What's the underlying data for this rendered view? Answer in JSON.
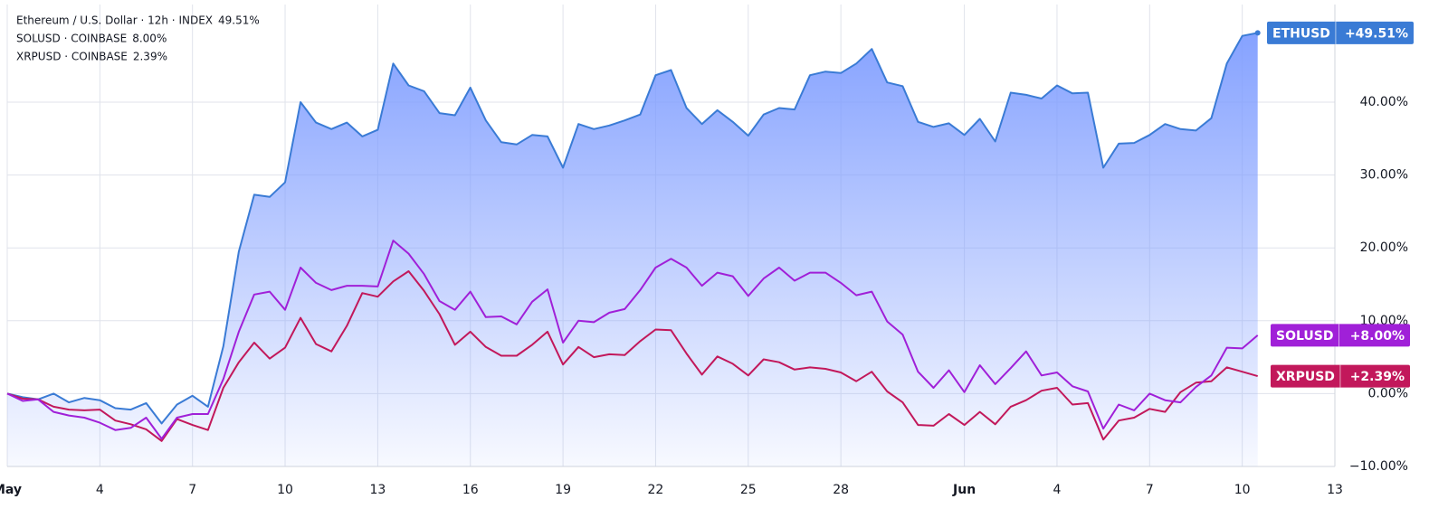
{
  "chart_data": {
    "type": "line",
    "x": [
      0,
      0.5,
      1,
      1.5,
      2,
      2.5,
      3,
      3.5,
      4,
      4.5,
      5,
      5.5,
      6,
      6.5,
      7,
      7.5,
      8,
      8.5,
      9,
      9.5,
      10,
      10.5,
      11,
      11.5,
      12,
      12.5,
      13,
      13.5,
      14,
      14.5,
      15,
      15.5,
      16,
      16.5,
      17,
      17.5,
      18,
      18.5,
      19,
      19.5,
      20,
      20.5,
      21,
      21.5,
      22,
      22.5,
      23,
      23.5,
      24,
      24.5,
      25,
      25.5,
      26,
      26.5,
      27,
      27.5,
      28,
      28.5,
      29,
      29.5,
      30,
      30.5,
      31,
      31.5,
      32,
      32.5,
      33,
      33.5,
      34,
      34.5,
      35,
      35.5,
      36,
      36.5,
      37,
      37.5,
      38,
      38.5,
      39,
      39.5,
      40,
      40.5
    ],
    "series": [
      {
        "name": "Ethereum / U.S. Dollar · 12h · INDEX",
        "symbol": "ETHUSD",
        "legend_value": "49.51%",
        "end_label": "+49.51%",
        "color": "#3a7bd5",
        "fill": true,
        "values": [
          0,
          -0.5,
          -0.8,
          0,
          -1.2,
          -0.6,
          -0.9,
          -2,
          -2.2,
          -1.3,
          -4.1,
          -1.5,
          -0.3,
          -1.8,
          6.5,
          19.5,
          27.3,
          27,
          29,
          40,
          37.2,
          36.3,
          37.2,
          35.3,
          36.2,
          45.3,
          42.3,
          41.5,
          38.5,
          38.2,
          42,
          37.5,
          34.5,
          34.2,
          35.5,
          35.3,
          31,
          37,
          36.3,
          36.8,
          37.5,
          38.3,
          43.7,
          44.4,
          39.2,
          37,
          38.9,
          37.3,
          35.4,
          38.3,
          39.2,
          39,
          43.7,
          44.2,
          44,
          45.3,
          47.3,
          42.7,
          42.2,
          37.3,
          36.6,
          37.1,
          35.5,
          37.7,
          34.6,
          41.3,
          41,
          40.5,
          42.3,
          41.2,
          41.3,
          31,
          34.3,
          34.4,
          35.5,
          37,
          36.3,
          36.1,
          37.8,
          45.3,
          49.1,
          49.51
        ]
      },
      {
        "name": "XRPUSD · COINBASE",
        "symbol": "XRPUSD",
        "legend_value": "2.39%",
        "end_label": "+2.39%",
        "color": "#c2185b",
        "fill": false,
        "values": [
          0,
          -0.7,
          -0.8,
          -1.8,
          -2.2,
          -2.3,
          -2.2,
          -3.7,
          -4.2,
          -4.9,
          -6.5,
          -3.5,
          -4.3,
          -5,
          0.8,
          4.3,
          7,
          4.8,
          6.3,
          10.4,
          6.8,
          5.8,
          9.3,
          13.8,
          13.3,
          15.4,
          16.8,
          14.1,
          10.9,
          6.7,
          8.5,
          6.4,
          5.2,
          5.2,
          6.7,
          8.5,
          4,
          6.4,
          5,
          5.4,
          5.3,
          7.2,
          8.8,
          8.7,
          5.5,
          2.6,
          5.1,
          4.1,
          2.5,
          4.7,
          4.3,
          3.3,
          3.6,
          3.4,
          2.9,
          1.7,
          3,
          0.3,
          -1.2,
          -4.3,
          -4.4,
          -2.8,
          -4.3,
          -2.5,
          -4.2,
          -1.8,
          -0.9,
          0.4,
          0.8,
          -1.5,
          -1.3,
          -6.3,
          -3.7,
          -3.3,
          -2.1,
          -2.5,
          0.2,
          1.5,
          1.7,
          3.6,
          3,
          2.39
        ]
      },
      {
        "name": "SOLUSD · COINBASE",
        "symbol": "SOLUSD",
        "legend_value": "8.00%",
        "end_label": "+8.00%",
        "color": "#a020d8",
        "fill": false,
        "values": [
          0,
          -1,
          -0.8,
          -2.5,
          -3,
          -3.3,
          -4,
          -5,
          -4.7,
          -3.3,
          -6.2,
          -3.3,
          -2.8,
          -2.8,
          2,
          8.5,
          13.6,
          14,
          11.5,
          17.3,
          15.2,
          14.2,
          14.8,
          14.8,
          14.7,
          21,
          19.2,
          16.4,
          12.7,
          11.5,
          14,
          10.5,
          10.6,
          9.5,
          12.6,
          14.3,
          7,
          10,
          9.8,
          11.1,
          11.6,
          14.2,
          17.3,
          18.5,
          17.3,
          14.8,
          16.6,
          16.1,
          13.4,
          15.8,
          17.3,
          15.5,
          16.6,
          16.6,
          15.2,
          13.5,
          14,
          9.9,
          8.1,
          3,
          0.8,
          3.2,
          0.2,
          3.9,
          1.3,
          3.5,
          5.8,
          2.5,
          2.9,
          1,
          0.3,
          -4.8,
          -1.5,
          -2.3,
          0,
          -0.9,
          -1.2,
          0.9,
          2.5,
          6.3,
          6.2,
          8
        ]
      }
    ],
    "xlim": [
      0,
      43
    ],
    "xticks": [
      {
        "value": 0,
        "label": "May"
      },
      {
        "value": 3,
        "label": "4"
      },
      {
        "value": 6,
        "label": "7"
      },
      {
        "value": 9,
        "label": "10"
      },
      {
        "value": 12,
        "label": "13"
      },
      {
        "value": 15,
        "label": "16"
      },
      {
        "value": 18,
        "label": "19"
      },
      {
        "value": 21,
        "label": "22"
      },
      {
        "value": 24,
        "label": "25"
      },
      {
        "value": 27,
        "label": "28"
      },
      {
        "value": 31,
        "label": "Jun"
      },
      {
        "value": 34,
        "label": "4"
      },
      {
        "value": 37,
        "label": "7"
      },
      {
        "value": 40,
        "label": "10"
      },
      {
        "value": 43,
        "label": "13"
      }
    ],
    "ylim": [
      -10,
      53.4
    ],
    "yticks": [
      {
        "value": -10,
        "label": "−10.00%"
      },
      {
        "value": 0,
        "label": "0.00%"
      },
      {
        "value": 10,
        "label": "10.00%"
      },
      {
        "value": 20,
        "label": "20.00%"
      },
      {
        "value": 30,
        "label": "30.00%"
      },
      {
        "value": 40,
        "label": "40.00%"
      }
    ],
    "grid": true,
    "legend": "top-left"
  }
}
